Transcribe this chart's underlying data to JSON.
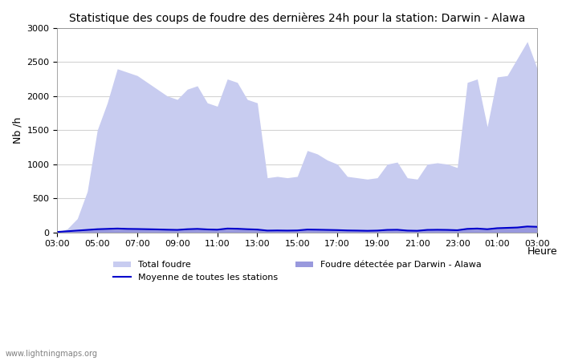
{
  "title": "Statistique des coups de foudre des dernières 24h pour la station: Darwin - Alawa",
  "ylabel": "Nb /h",
  "xlabel": "Heure",
  "watermark": "www.lightningmaps.org",
  "ylim": [
    0,
    3000
  ],
  "x_ticks": [
    "03:00",
    "05:00",
    "07:00",
    "09:00",
    "11:00",
    "13:00",
    "15:00",
    "17:00",
    "19:00",
    "21:00",
    "23:00",
    "01:00",
    "03:00"
  ],
  "total_foudre_color": "#c8ccf0",
  "detected_foudre_color": "#9999dd",
  "moyenne_color": "#0000cc",
  "time_points": [
    0,
    0.5,
    1,
    1.5,
    2,
    2.5,
    3,
    3.5,
    4,
    4.5,
    5,
    5.5,
    6,
    6.5,
    7,
    7.5,
    8,
    8.5,
    9,
    9.5,
    10,
    10.5,
    11,
    11.5,
    12,
    12.5,
    13,
    13.5,
    14,
    14.5,
    15,
    15.5,
    16,
    16.5,
    17,
    17.5,
    18,
    18.5,
    19,
    19.5,
    20,
    20.5,
    21,
    21.5,
    22,
    22.5,
    23,
    23.5,
    24
  ],
  "total_foudre_values": [
    0,
    50,
    200,
    600,
    1500,
    1900,
    2400,
    2350,
    2300,
    2200,
    2100,
    2000,
    1950,
    2100,
    2150,
    1900,
    1850,
    2250,
    2200,
    1950,
    1900,
    800,
    820,
    800,
    820,
    1200,
    1150,
    1060,
    1000,
    820,
    800,
    780,
    800,
    1000,
    1030,
    800,
    780,
    1000,
    1020,
    1000,
    950,
    2200,
    2250,
    1550,
    2280,
    2300,
    2550,
    2800,
    2400
  ],
  "detected_foudre_values": [
    0,
    10,
    20,
    40,
    50,
    60,
    70,
    60,
    55,
    50,
    45,
    40,
    35,
    50,
    55,
    45,
    40,
    65,
    60,
    50,
    45,
    30,
    32,
    30,
    32,
    45,
    42,
    40,
    38,
    32,
    30,
    28,
    30,
    38,
    40,
    30,
    28,
    38,
    40,
    38,
    35,
    55,
    60,
    50,
    65,
    70,
    75,
    90,
    85
  ],
  "moyenne_values": [
    5,
    15,
    25,
    35,
    45,
    50,
    55,
    50,
    48,
    45,
    42,
    38,
    35,
    45,
    50,
    42,
    38,
    55,
    52,
    45,
    40,
    25,
    27,
    25,
    27,
    40,
    38,
    35,
    32,
    27,
    25,
    22,
    25,
    35,
    37,
    25,
    22,
    35,
    37,
    35,
    30,
    50,
    55,
    45,
    60,
    65,
    70,
    85,
    80
  ]
}
